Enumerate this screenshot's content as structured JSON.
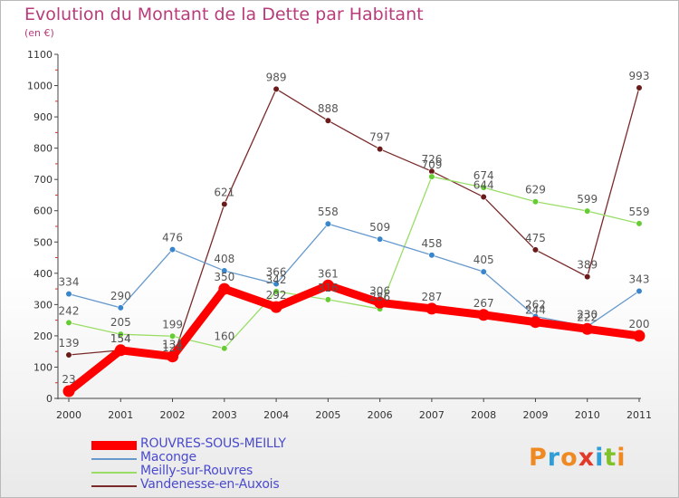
{
  "header": {
    "title": "Evolution du Montant de la Dette par Habitant",
    "unit": "(en €)"
  },
  "brand": {
    "letters": [
      "P",
      "r",
      "o",
      "x",
      "i",
      "t",
      "i"
    ],
    "colors": [
      "#ef8a23",
      "#2f9ed8",
      "#ef8a23",
      "#e23a2a",
      "#2f9ed8",
      "#7fc22a",
      "#ef8a23"
    ]
  },
  "chart_data": {
    "type": "line",
    "x": [
      "2000",
      "2001",
      "2002",
      "2003",
      "2004",
      "2005",
      "2006",
      "2007",
      "2008",
      "2009",
      "2010",
      "2011"
    ],
    "ylim": [
      0,
      1100
    ],
    "yticks": [
      0,
      100,
      200,
      300,
      400,
      500,
      600,
      700,
      800,
      900,
      1000,
      1100
    ],
    "grid": false,
    "legend_position": "bottom-left",
    "series": [
      {
        "name": "ROUVRES-SOUS-MEILLY",
        "color": "#ff0000",
        "marker": "#ff0000",
        "label_color": "#555555",
        "values": [
          23,
          154,
          134,
          350,
          292,
          361,
          306,
          287,
          267,
          244,
          222,
          200
        ]
      },
      {
        "name": "Maconge",
        "color": "#6699cc",
        "marker": "#3a86cc",
        "label_color": "#555555",
        "values": [
          334,
          290,
          476,
          408,
          366,
          558,
          509,
          458,
          405,
          262,
          230,
          343
        ]
      },
      {
        "name": "Meilly-sur-Rouvres",
        "color": "#99dd66",
        "marker": "#66cc33",
        "label_color": "#555555",
        "values": [
          242,
          205,
          199,
          160,
          342,
          316,
          286,
          709,
          674,
          629,
          599,
          559
        ]
      },
      {
        "name": "Vandenesse-en-Auxois",
        "color": "#7a2a2a",
        "marker": "#6b1a1a",
        "label_color": "#555555",
        "values": [
          139,
          154,
          124,
          621,
          989,
          888,
          797,
          726,
          644,
          475,
          389,
          993
        ]
      }
    ]
  }
}
